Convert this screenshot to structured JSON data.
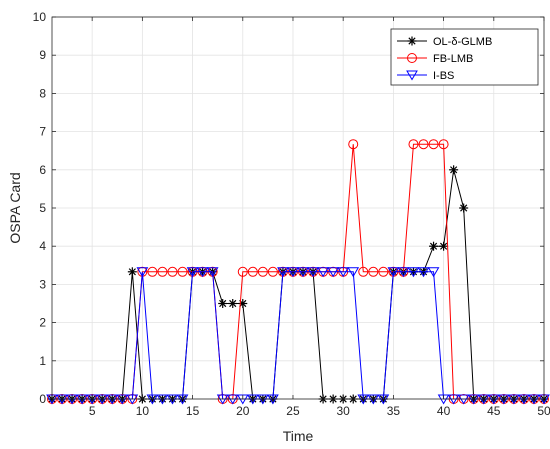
{
  "chart_data": {
    "type": "line",
    "title": "",
    "xlabel": "Time",
    "ylabel": "OSPA Card",
    "xlim": [
      1,
      50
    ],
    "ylim": [
      0,
      10
    ],
    "xticks": [
      5,
      10,
      15,
      20,
      25,
      30,
      35,
      40,
      45,
      50
    ],
    "yticks": [
      0,
      1,
      2,
      3,
      4,
      5,
      6,
      7,
      8,
      9,
      10
    ],
    "grid": true,
    "legend_position": "top-right",
    "x": [
      1,
      2,
      3,
      4,
      5,
      6,
      7,
      8,
      9,
      10,
      11,
      12,
      13,
      14,
      15,
      16,
      17,
      18,
      19,
      20,
      21,
      22,
      23,
      24,
      25,
      26,
      27,
      28,
      29,
      30,
      31,
      32,
      33,
      34,
      35,
      36,
      37,
      38,
      39,
      40,
      41,
      42,
      43,
      44,
      45,
      46,
      47,
      48,
      49,
      50
    ],
    "series": [
      {
        "name": "OL-δ-GLMB",
        "color": "#000000",
        "marker": "asterisk",
        "values": [
          0,
          0,
          0,
          0,
          0,
          0,
          0,
          0,
          3.33,
          0,
          0,
          0,
          0,
          0,
          3.33,
          3.33,
          3.33,
          2.5,
          2.5,
          2.5,
          0,
          0,
          0,
          3.33,
          3.33,
          3.33,
          3.33,
          0,
          0,
          0,
          0,
          0,
          0,
          0,
          3.33,
          3.33,
          3.33,
          3.33,
          4,
          4,
          6,
          5,
          0,
          0,
          0,
          0,
          0,
          0,
          0,
          0
        ]
      },
      {
        "name": "FB-LMB",
        "color": "#ff0000",
        "marker": "circle",
        "values": [
          0,
          0,
          0,
          0,
          0,
          0,
          0,
          0,
          0,
          3.33,
          3.33,
          3.33,
          3.33,
          3.33,
          3.33,
          3.33,
          3.33,
          0,
          0,
          3.33,
          3.33,
          3.33,
          3.33,
          3.33,
          3.33,
          3.33,
          3.33,
          3.33,
          3.33,
          3.33,
          6.67,
          3.33,
          3.33,
          3.33,
          3.33,
          3.33,
          6.67,
          6.67,
          6.67,
          6.67,
          0,
          0,
          0,
          0,
          0,
          0,
          0,
          0,
          0,
          0
        ]
      },
      {
        "name": "I-BS",
        "color": "#0000ff",
        "marker": "triangle-down",
        "values": [
          0,
          0,
          0,
          0,
          0,
          0,
          0,
          0,
          0,
          3.33,
          0,
          0,
          0,
          0,
          3.33,
          3.33,
          3.33,
          0,
          0,
          0,
          0,
          0,
          0,
          3.33,
          3.33,
          3.33,
          3.33,
          3.33,
          3.33,
          3.33,
          3.33,
          0,
          0,
          0,
          3.33,
          3.33,
          3.33,
          3.33,
          3.33,
          0,
          0,
          0,
          0,
          0,
          0,
          0,
          0,
          0,
          0,
          0
        ]
      }
    ]
  }
}
